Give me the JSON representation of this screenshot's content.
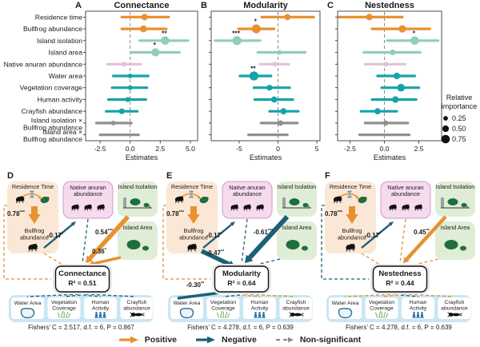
{
  "colors": {
    "orange": "#E8912F",
    "seafoam": "#92CDB7",
    "pink": "#E3C0DC",
    "teal": "#14A3AA",
    "gray": "#8F8F8F",
    "neg_blue": "#1C6077",
    "dark_green": "#1E6F3E",
    "peach_box": "#FBE7D6",
    "pink_box": "#F6DBEF",
    "pink_box_border": "#CD9BC9",
    "green_box": "#E0EDD6",
    "blue_box": "#C9E6F4",
    "gray_box": "#E9E9E9",
    "people_blue": "#1B6FA8",
    "grass_green": "#7CB566",
    "pond_stroke": "#2E6E8E",
    "pond_fill": "#EAF5FB",
    "hourglass": "#5B97C4",
    "ns_gray": "#8a8a8a"
  },
  "forest": {
    "xlabel": "Estimates",
    "row_labels": [
      [
        "Residence time"
      ],
      [
        "Bullfrog abundance"
      ],
      [
        "Island isolation"
      ],
      [
        "Island area"
      ],
      [
        "Native anuran abundance"
      ],
      [
        "Water area"
      ],
      [
        "Vegetation coverage"
      ],
      [
        "Human activity"
      ],
      [
        "Crayfish abundance"
      ],
      [
        "Island isolation ×",
        "Bullfrog abundance"
      ],
      [
        "Island area ×",
        "Bullfrog abundance"
      ]
    ],
    "row_colors": [
      "orange",
      "orange",
      "seafoam",
      "seafoam",
      "pink",
      "teal",
      "teal",
      "teal",
      "teal",
      "gray",
      "gray"
    ],
    "size_legend": {
      "title_lines": [
        "Relative",
        "importance"
      ],
      "items": [
        {
          "label": "0.25",
          "importance": 0.25
        },
        {
          "label": "0.50",
          "importance": 0.5
        },
        {
          "label": "0.75",
          "importance": 0.75
        }
      ]
    }
  },
  "chart_data": [
    {
      "type": "forest",
      "panel_letter": "A",
      "title": "Connectance",
      "xlabel": "Estimates",
      "xlim": [
        -3.7,
        5.6
      ],
      "ticks": [
        {
          "v": -2.5,
          "label": "-2.5"
        },
        {
          "v": 0,
          "label": "0.0"
        },
        {
          "v": 2.5,
          "label": "2.5"
        },
        {
          "v": 5,
          "label": "5.0"
        }
      ],
      "categories": [
        "Residence time",
        "Bullfrog abundance",
        "Island isolation",
        "Island area",
        "Native anuran abundance",
        "Water area",
        "Vegetation coverage",
        "Human activity",
        "Crayfish abundance",
        "Island isolation × Bullfrog abundance",
        "Island area × Bullfrog abundance"
      ],
      "rows": [
        {
          "estimate": 1.2,
          "ci": [
            -0.7,
            3.2
          ],
          "importance": 0.5,
          "significance": ""
        },
        {
          "estimate": 1.1,
          "ci": [
            -0.7,
            3.0
          ],
          "importance": 0.55,
          "significance": ""
        },
        {
          "estimate": 2.9,
          "ci": [
            0.8,
            4.8
          ],
          "importance": 0.75,
          "significance": "**"
        },
        {
          "estimate": 2.1,
          "ci": [
            0.1,
            4.1
          ],
          "importance": 0.7,
          "significance": "*"
        },
        {
          "estimate": -0.5,
          "ci": [
            -1.9,
            0.9
          ],
          "importance": 0.3,
          "significance": ""
        },
        {
          "estimate": 0.0,
          "ci": [
            -1.4,
            1.5
          ],
          "importance": 0.25,
          "significance": ""
        },
        {
          "estimate": 0.0,
          "ci": [
            -1.5,
            1.4
          ],
          "importance": 0.25,
          "significance": ""
        },
        {
          "estimate": -0.2,
          "ci": [
            -1.8,
            1.3
          ],
          "importance": 0.3,
          "significance": ""
        },
        {
          "estimate": -0.7,
          "ci": [
            -2.0,
            0.6
          ],
          "importance": 0.4,
          "significance": ""
        },
        {
          "estimate": -1.4,
          "ci": [
            -2.8,
            0.1
          ],
          "importance": 0.25,
          "significance": ""
        },
        {
          "estimate": -0.9,
          "ci": [
            -2.5,
            0.7
          ],
          "importance": 0,
          "significance": ""
        }
      ]
    },
    {
      "type": "forest",
      "panel_letter": "B",
      "title": "Modularity",
      "xlabel": "Estimates",
      "xlim": [
        -8.6,
        5.4
      ],
      "ticks": [
        {
          "v": -5,
          "label": "-5"
        },
        {
          "v": 0,
          "label": "0"
        },
        {
          "v": 5,
          "label": "5"
        }
      ],
      "categories": [
        "Residence time",
        "Bullfrog abundance",
        "Island isolation",
        "Island area",
        "Native anuran abundance",
        "Water area",
        "Vegetation coverage",
        "Human activity",
        "Crayfish abundance",
        "Island isolation × Bullfrog abundance",
        "Island area × Bullfrog abundance"
      ],
      "rows": [
        {
          "estimate": 1.2,
          "ci": [
            -2.1,
            4.6
          ],
          "importance": 0.45,
          "significance": ""
        },
        {
          "estimate": -2.8,
          "ci": [
            -5.1,
            -0.5
          ],
          "importance": 0.8,
          "significance": "*"
        },
        {
          "estimate": -5.3,
          "ci": [
            -8.1,
            -2.3
          ],
          "importance": 0.8,
          "significance": "***"
        },
        {
          "estimate": 0.2,
          "ci": [
            -2.6,
            3.5
          ],
          "importance": 0.25,
          "significance": ""
        },
        {
          "estimate": -0.4,
          "ci": [
            -2.3,
            1.4
          ],
          "importance": 0.3,
          "significance": ""
        },
        {
          "estimate": -3.1,
          "ci": [
            -4.9,
            -0.9
          ],
          "importance": 0.8,
          "significance": "**"
        },
        {
          "estimate": -1.1,
          "ci": [
            -3.1,
            1.5
          ],
          "importance": 0.4,
          "significance": ""
        },
        {
          "estimate": -0.5,
          "ci": [
            -3.0,
            1.9
          ],
          "importance": 0.45,
          "significance": ""
        },
        {
          "estimate": 0.7,
          "ci": [
            -1.1,
            2.6
          ],
          "importance": 0.45,
          "significance": ""
        },
        {
          "estimate": 0.3,
          "ci": [
            -2.2,
            2.5
          ],
          "importance": 0.35,
          "significance": ""
        },
        {
          "estimate": -1.3,
          "ci": [
            -3.8,
            1.2
          ],
          "importance": 0,
          "significance": ""
        }
      ]
    },
    {
      "type": "forest",
      "panel_letter": "C",
      "title": "Nestedness",
      "xlabel": "Estimates",
      "xlim": [
        -3.4,
        4.15
      ],
      "ticks": [
        {
          "v": -2.5,
          "label": "-2.5"
        },
        {
          "v": 0,
          "label": "0.0"
        },
        {
          "v": 2.5,
          "label": "2.5"
        }
      ],
      "categories": [
        "Residence time",
        "Bullfrog abundance",
        "Island isolation",
        "Island area",
        "Native anuran abundance",
        "Water area",
        "Vegetation coverage",
        "Human activity",
        "Crayfish abundance",
        "Island isolation × Bullfrog abundance",
        "Island area × Bullfrog abundance"
      ],
      "rows": [
        {
          "estimate": -1.1,
          "ci": [
            -3.3,
            1.3
          ],
          "importance": 0.5,
          "significance": ""
        },
        {
          "estimate": 1.3,
          "ci": [
            -0.9,
            3.3
          ],
          "importance": 0.6,
          "significance": ""
        },
        {
          "estimate": 2.2,
          "ci": [
            0.2,
            3.9
          ],
          "importance": 0.75,
          "significance": "*"
        },
        {
          "estimate": 0.6,
          "ci": [
            -1.5,
            2.6
          ],
          "importance": 0.4,
          "significance": ""
        },
        {
          "estimate": 0.1,
          "ci": [
            -1.4,
            1.5
          ],
          "importance": 0.3,
          "significance": ""
        },
        {
          "estimate": 0.9,
          "ci": [
            -0.5,
            2.2
          ],
          "importance": 0.5,
          "significance": ""
        },
        {
          "estimate": 1.2,
          "ci": [
            -0.2,
            2.5
          ],
          "importance": 0.65,
          "significance": ""
        },
        {
          "estimate": 0.8,
          "ci": [
            -0.9,
            2.3
          ],
          "importance": 0.5,
          "significance": ""
        },
        {
          "estimate": -0.5,
          "ci": [
            -1.7,
            0.9
          ],
          "importance": 0.45,
          "significance": ""
        },
        {
          "estimate": 0.1,
          "ci": [
            -1.4,
            1.7
          ],
          "importance": 0.3,
          "significance": ""
        },
        {
          "estimate": 0.0,
          "ci": [
            -1.8,
            1.8
          ],
          "importance": 0,
          "significance": ""
        }
      ]
    }
  ],
  "sem": {
    "box_labels": {
      "rt": "Residence Time",
      "bullfrog": [
        "Bullfrog",
        "abundance"
      ],
      "anuran": [
        "Native anuran",
        "abundance"
      ],
      "isolation": "Island Isolation",
      "area": "Island Area",
      "water": "Water Area",
      "veg": [
        "Vegetation",
        "Coverage"
      ],
      "human": [
        "Human",
        "Activity"
      ],
      "cray": [
        "Crayfish",
        "abundance"
      ]
    },
    "panels": [
      {
        "letter": "D",
        "response": "Connectance",
        "r2": "R² = 0.51",
        "fisher": "Fishers’ C = 2.517, d.f. = 6, P = 0.867",
        "paths": [
          {
            "from": "rt",
            "to": "bullfrog",
            "label": "0.78",
            "stars": "***",
            "sign": "pos",
            "w": 8
          },
          {
            "from": "bullfrog",
            "to": "anuran",
            "label": "-0.17",
            "stars": "*",
            "sign": "neg",
            "w": 2.4
          },
          {
            "from": "isolation",
            "to": "resp",
            "label": "0.54",
            "stars": "***",
            "sign": "pos",
            "w": 5.5
          },
          {
            "from": "area",
            "to": "resp",
            "label": "0.36",
            "stars": "*",
            "sign": "pos",
            "w": 3.5
          }
        ],
        "dashed": [
          {
            "route": "anuran",
            "sign": "neg"
          },
          {
            "route": "rtLeft",
            "sign": "pos"
          },
          {
            "route": "bullfrogR",
            "sign": "pos"
          },
          {
            "route": "water",
            "sign": "neg"
          },
          {
            "route": "veg",
            "sign": "neg"
          },
          {
            "route": "human",
            "sign": "neg"
          },
          {
            "route": "cray",
            "sign": "neg"
          }
        ]
      },
      {
        "letter": "E",
        "response": "Modularity",
        "r2": "R² = 0.64",
        "fisher": "Fishers’ C = 4.278, d.f. = 6, P = 0.639",
        "paths": [
          {
            "from": "rt",
            "to": "bullfrog",
            "label": "0.78",
            "stars": "***",
            "sign": "pos",
            "w": 8
          },
          {
            "from": "bullfrog",
            "to": "anuran",
            "label": "-0.17",
            "stars": "*",
            "sign": "neg",
            "w": 2.4
          },
          {
            "from": "isolation",
            "to": "resp",
            "label": "-0.61",
            "stars": "***",
            "sign": "neg",
            "w": 6
          },
          {
            "from": "bullfrog",
            "to": "resp",
            "label": "-0.47",
            "stars": "**",
            "sign": "neg",
            "w": 5.5
          },
          {
            "from": "water",
            "to": "resp",
            "label": "-0.30",
            "stars": "**",
            "sign": "neg",
            "w": 3.5
          }
        ],
        "dashed": [
          {
            "route": "anuran",
            "sign": "neg"
          },
          {
            "route": "rtLeft",
            "sign": "pos"
          },
          {
            "route": "area",
            "sign": "neg"
          },
          {
            "route": "veg",
            "sign": "neg"
          },
          {
            "route": "human",
            "sign": "pos"
          },
          {
            "route": "cray",
            "sign": "pos"
          }
        ]
      },
      {
        "letter": "F",
        "response": "Nestedness",
        "r2": "R² = 0.44",
        "fisher": "Fishers’ C = 4.278, d.f. = 6, P = 0.639",
        "paths": [
          {
            "from": "rt",
            "to": "bullfrog",
            "label": "0.78",
            "stars": "***",
            "sign": "pos",
            "w": 8
          },
          {
            "from": "bullfrog",
            "to": "anuran",
            "label": "-0.17",
            "stars": "*",
            "sign": "neg",
            "w": 2.4
          },
          {
            "from": "isolation",
            "to": "resp",
            "label": "0.45",
            "stars": "**",
            "sign": "pos",
            "w": 4.5
          }
        ],
        "dashed": [
          {
            "route": "rtLeft",
            "sign": "neg"
          },
          {
            "route": "bullfrogR",
            "sign": "pos"
          },
          {
            "route": "anuran",
            "sign": "pos"
          },
          {
            "route": "area",
            "sign": "pos"
          },
          {
            "route": "water",
            "sign": "pos"
          },
          {
            "route": "veg",
            "sign": "pos"
          },
          {
            "route": "human",
            "sign": "neg"
          },
          {
            "route": "cray",
            "sign": "pos"
          }
        ]
      }
    ],
    "legend": [
      {
        "sign": "pos",
        "label": "Positive"
      },
      {
        "sign": "neg",
        "label": "Negative"
      },
      {
        "sign": "ns",
        "label": "Non-significant"
      }
    ]
  }
}
